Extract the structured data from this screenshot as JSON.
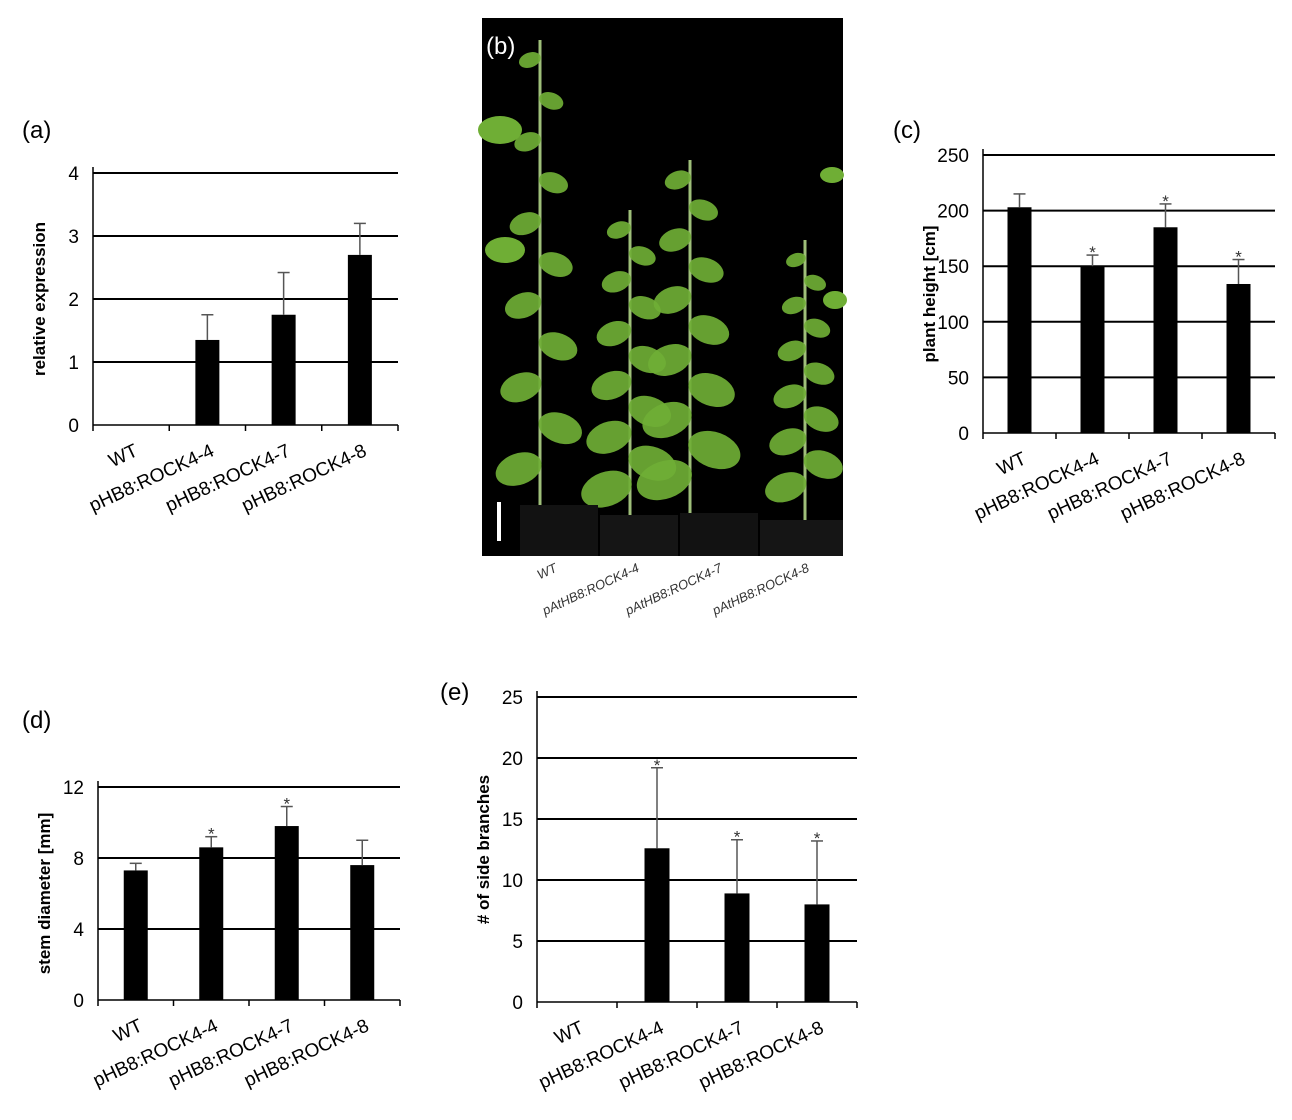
{
  "panels": {
    "a": "(a)",
    "b": "(b)",
    "c": "(c)",
    "d": "(d)",
    "e": "(e)"
  },
  "photo": {
    "labels": [
      "WT",
      "pAtHB8:ROCK4-4",
      "pAtHB8:ROCK4-7",
      "pAtHB8:ROCK4-8"
    ],
    "background_color": "#000000",
    "foliage_color": "#6fae35"
  },
  "chart_data": [
    {
      "id": "a",
      "type": "bar",
      "categories": [
        "WT",
        "pHB8:ROCK4-4",
        "pHB8:ROCK4-7",
        "pHB8:ROCK4-8"
      ],
      "values": [
        0,
        1.35,
        1.75,
        2.7
      ],
      "errors": [
        0,
        0.4,
        0.67,
        0.5
      ],
      "significant": [
        false,
        false,
        false,
        false
      ],
      "ylabel": "relative expression",
      "ylim": [
        0,
        4
      ],
      "yticks": [
        0,
        1,
        2,
        3,
        4
      ],
      "grid": true,
      "bar_color": "#000000"
    },
    {
      "id": "c",
      "type": "bar",
      "categories": [
        "WT",
        "pHB8:ROCK4-4",
        "pHB8:ROCK4-7",
        "pHB8:ROCK4-8"
      ],
      "values": [
        203,
        150,
        185,
        134
      ],
      "errors": [
        12,
        10,
        21,
        22
      ],
      "significant": [
        false,
        true,
        true,
        true
      ],
      "ylabel": "plant height [cm]",
      "ylim": [
        0,
        250
      ],
      "yticks": [
        0,
        50,
        100,
        150,
        200,
        250
      ],
      "grid": true,
      "bar_color": "#000000"
    },
    {
      "id": "d",
      "type": "bar",
      "categories": [
        "WT",
        "pHB8:ROCK4-4",
        "pHB8:ROCK4-7",
        "pHB8:ROCK4-8"
      ],
      "values": [
        7.3,
        8.6,
        9.8,
        7.6
      ],
      "errors": [
        0.4,
        0.6,
        1.1,
        1.4
      ],
      "significant": [
        false,
        true,
        true,
        false
      ],
      "ylabel": "stem diameter [mm]",
      "ylim": [
        0,
        12
      ],
      "yticks": [
        0,
        4,
        8,
        12
      ],
      "grid": true,
      "bar_color": "#000000"
    },
    {
      "id": "e",
      "type": "bar",
      "categories": [
        "WT",
        "pHB8:ROCK4-4",
        "pHB8:ROCK4-7",
        "pHB8:ROCK4-8"
      ],
      "values": [
        0,
        12.6,
        8.9,
        8.0
      ],
      "errors": [
        0,
        6.6,
        4.4,
        5.2
      ],
      "significant": [
        false,
        true,
        true,
        true
      ],
      "ylabel": "# of side branches",
      "ylim": [
        0,
        25
      ],
      "yticks": [
        0,
        5,
        10,
        15,
        20,
        25
      ],
      "grid": true,
      "bar_color": "#000000"
    }
  ],
  "significance_marker": "*"
}
